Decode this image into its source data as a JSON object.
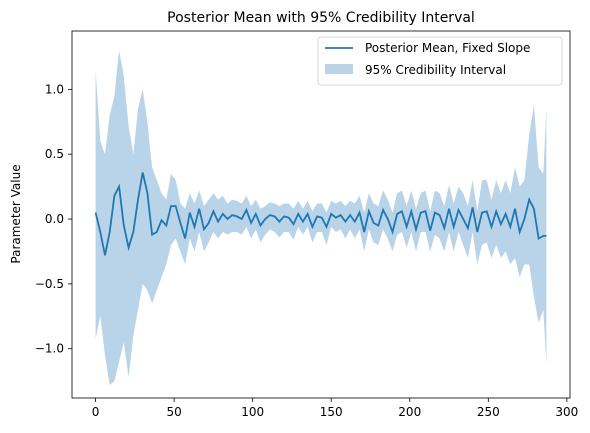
{
  "chart_data": {
    "type": "line",
    "title": "Posterior Mean with 95% Credibility Interval",
    "xlabel": "",
    "ylabel": "Parameter Value",
    "xlim": [
      -15,
      302
    ],
    "ylim": [
      -1.38,
      1.45
    ],
    "xticks": [
      0,
      50,
      100,
      150,
      200,
      250,
      300
    ],
    "yticks": [
      -1.0,
      -0.5,
      0.0,
      0.5,
      1.0
    ],
    "ytick_labels": [
      "−1.0",
      "−0.5",
      "0.0",
      "0.5",
      "1.0"
    ],
    "grid": false,
    "legend_position": "top-right",
    "colors": {
      "line": "#1f77b4",
      "band": "#b9d4e8"
    },
    "series": [
      {
        "name": "Posterior Mean, Fixed Slope",
        "kind": "line",
        "x": [
          0,
          3,
          6,
          9,
          12,
          15,
          18,
          21,
          24,
          27,
          30,
          33,
          36,
          39,
          42,
          45,
          48,
          51,
          54,
          57,
          60,
          63,
          66,
          69,
          72,
          75,
          78,
          81,
          84,
          87,
          90,
          93,
          96,
          99,
          102,
          105,
          108,
          111,
          114,
          117,
          120,
          123,
          126,
          129,
          132,
          135,
          138,
          141,
          144,
          147,
          150,
          153,
          156,
          159,
          162,
          165,
          168,
          171,
          174,
          177,
          180,
          183,
          186,
          189,
          192,
          195,
          198,
          201,
          204,
          207,
          210,
          213,
          216,
          219,
          222,
          225,
          228,
          231,
          234,
          237,
          240,
          243,
          246,
          249,
          252,
          255,
          258,
          261,
          264,
          267,
          270,
          273,
          276,
          279,
          282,
          285,
          287
        ],
        "y": [
          0.05,
          -0.1,
          -0.28,
          -0.1,
          0.18,
          0.25,
          -0.05,
          -0.22,
          -0.1,
          0.15,
          0.36,
          0.2,
          -0.12,
          -0.1,
          -0.01,
          -0.05,
          0.1,
          0.1,
          -0.03,
          -0.15,
          0.05,
          -0.06,
          0.08,
          -0.08,
          -0.03,
          0.06,
          -0.02,
          0.04,
          0.0,
          0.03,
          0.02,
          0.0,
          0.07,
          -0.03,
          0.04,
          -0.05,
          0.0,
          0.03,
          0.02,
          -0.02,
          0.02,
          0.01,
          -0.04,
          0.04,
          -0.02,
          0.04,
          -0.06,
          0.02,
          0.01,
          -0.06,
          0.04,
          0.01,
          0.03,
          -0.02,
          0.03,
          -0.02,
          0.05,
          -0.1,
          0.06,
          -0.03,
          -0.05,
          0.07,
          0.0,
          -0.1,
          0.04,
          0.06,
          -0.06,
          0.06,
          -0.08,
          0.05,
          0.06,
          -0.09,
          0.05,
          0.03,
          -0.07,
          0.08,
          -0.06,
          0.07,
          0.0,
          -0.07,
          0.09,
          -0.1,
          0.05,
          0.06,
          -0.06,
          0.06,
          -0.04,
          0.04,
          -0.06,
          0.08,
          -0.1,
          0.0,
          0.15,
          0.08,
          -0.15,
          -0.13,
          -0.13
        ]
      },
      {
        "name": "95% Credibility Interval",
        "kind": "band",
        "x": [
          0,
          3,
          6,
          9,
          12,
          15,
          18,
          21,
          24,
          27,
          30,
          33,
          36,
          39,
          42,
          45,
          48,
          51,
          54,
          57,
          60,
          63,
          66,
          69,
          72,
          75,
          78,
          81,
          84,
          87,
          90,
          93,
          96,
          99,
          102,
          105,
          108,
          111,
          114,
          117,
          120,
          123,
          126,
          129,
          132,
          135,
          138,
          141,
          144,
          147,
          150,
          153,
          156,
          159,
          162,
          165,
          168,
          171,
          174,
          177,
          180,
          183,
          186,
          189,
          192,
          195,
          198,
          201,
          204,
          207,
          210,
          213,
          216,
          219,
          222,
          225,
          228,
          231,
          234,
          237,
          240,
          243,
          246,
          249,
          252,
          255,
          258,
          261,
          264,
          267,
          270,
          273,
          276,
          279,
          282,
          285,
          287
        ],
        "upper": [
          1.15,
          0.6,
          0.5,
          0.8,
          0.95,
          1.3,
          1.1,
          0.72,
          0.5,
          0.85,
          1.0,
          0.75,
          0.4,
          0.3,
          0.2,
          0.15,
          0.35,
          0.3,
          0.12,
          0.08,
          0.2,
          0.12,
          0.22,
          0.1,
          0.15,
          0.2,
          0.15,
          0.18,
          0.12,
          0.15,
          0.14,
          0.12,
          0.18,
          0.1,
          0.15,
          0.08,
          0.1,
          0.13,
          0.12,
          0.1,
          0.12,
          0.12,
          0.08,
          0.14,
          0.08,
          0.14,
          0.06,
          0.12,
          0.12,
          0.05,
          0.14,
          0.12,
          0.14,
          0.1,
          0.14,
          0.12,
          0.18,
          0.05,
          0.2,
          0.12,
          0.1,
          0.22,
          0.15,
          0.05,
          0.2,
          0.22,
          0.1,
          0.22,
          0.08,
          0.2,
          0.22,
          0.06,
          0.22,
          0.2,
          0.1,
          0.26,
          0.12,
          0.25,
          0.2,
          0.1,
          0.3,
          0.06,
          0.3,
          0.3,
          0.15,
          0.3,
          0.2,
          0.3,
          0.2,
          0.4,
          0.25,
          0.3,
          0.65,
          0.88,
          0.4,
          0.35,
          0.85
        ],
        "lower": [
          -0.92,
          -0.75,
          -1.05,
          -1.28,
          -1.25,
          -1.1,
          -0.95,
          -1.22,
          -0.9,
          -0.7,
          -0.5,
          -0.55,
          -0.65,
          -0.55,
          -0.45,
          -0.35,
          -0.2,
          -0.15,
          -0.25,
          -0.35,
          -0.15,
          -0.25,
          -0.1,
          -0.25,
          -0.18,
          -0.1,
          -0.15,
          -0.1,
          -0.12,
          -0.1,
          -0.1,
          -0.12,
          -0.06,
          -0.15,
          -0.08,
          -0.18,
          -0.12,
          -0.08,
          -0.1,
          -0.14,
          -0.1,
          -0.1,
          -0.16,
          -0.06,
          -0.12,
          -0.06,
          -0.18,
          -0.1,
          -0.1,
          -0.2,
          -0.06,
          -0.1,
          -0.08,
          -0.15,
          -0.08,
          -0.15,
          -0.08,
          -0.25,
          -0.08,
          -0.18,
          -0.2,
          -0.08,
          -0.15,
          -0.25,
          -0.12,
          -0.1,
          -0.22,
          -0.1,
          -0.25,
          -0.1,
          -0.1,
          -0.25,
          -0.12,
          -0.15,
          -0.25,
          -0.1,
          -0.25,
          -0.1,
          -0.2,
          -0.3,
          -0.1,
          -0.35,
          -0.2,
          -0.18,
          -0.3,
          -0.2,
          -0.3,
          -0.25,
          -0.35,
          -0.3,
          -0.45,
          -0.35,
          -0.35,
          -0.6,
          -0.8,
          -0.7,
          -1.12
        ]
      }
    ]
  }
}
